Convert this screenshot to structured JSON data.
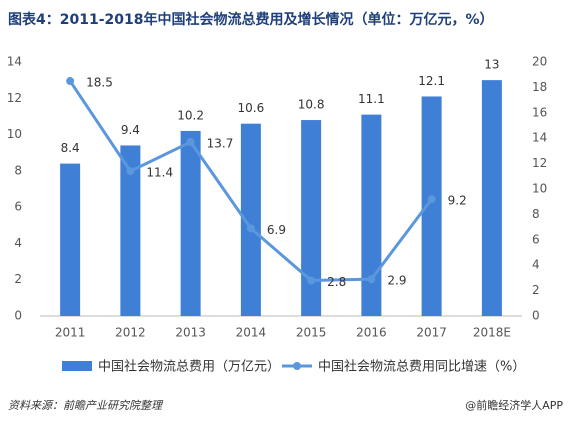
{
  "chart_data": {
    "type": "bar",
    "title": "图表4：2011-2018年中国社会物流总费用及增长情况（单位：万亿元，%）",
    "source": "资料来源：前瞻产业研究院整理",
    "footer": "@前瞻经济学人APP",
    "categories": [
      "2011",
      "2012",
      "2013",
      "2014",
      "2015",
      "2016",
      "2017",
      "2018E"
    ],
    "series": [
      {
        "name": "中国社会物流总费用（万亿元）",
        "type": "bar",
        "color": "#3f7fd6",
        "values": [
          8.4,
          9.4,
          10.2,
          10.6,
          10.8,
          11.1,
          12.1,
          13
        ]
      },
      {
        "name": "中国社会物流总费用同比增速（%）",
        "type": "line",
        "axis": "y2",
        "color": "#5b97dd",
        "values": [
          18.5,
          11.4,
          13.7,
          6.9,
          2.8,
          2.9,
          9.2,
          null
        ]
      }
    ],
    "ylim": [
      0,
      14
    ],
    "yticks": [
      0,
      2,
      4,
      6,
      8,
      10,
      12,
      14
    ],
    "y2lim": [
      0,
      20
    ],
    "y2ticks": [
      0,
      2,
      4,
      6,
      8,
      10,
      12,
      14,
      16,
      18,
      20
    ],
    "grid": false,
    "legend": "bottom"
  }
}
